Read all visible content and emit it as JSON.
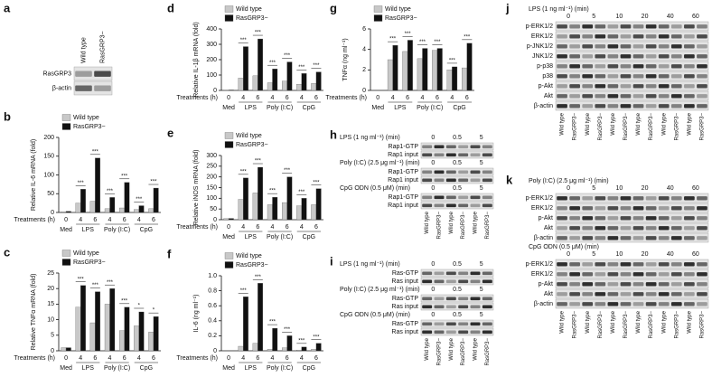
{
  "panel_letters": [
    "a",
    "b",
    "c",
    "d",
    "e",
    "f",
    "g",
    "h",
    "i",
    "j",
    "k"
  ],
  "chart_data": [
    {
      "type": "bar",
      "ylabel": "Relative IL-6 mRNA (fold)",
      "xlabel": "Treatments (h)",
      "categories": [
        "0",
        "4",
        "6",
        "4",
        "6",
        "4",
        "6"
      ],
      "groups": [
        "Med",
        "LPS",
        "Poly (I:C)",
        "CpG"
      ],
      "series": [
        {
          "name": "Wild type",
          "color": "#c8c8c8",
          "values": [
            2,
            25,
            30,
            10,
            12,
            8,
            10
          ]
        },
        {
          "name": "RasGRP3−",
          "color": "#111111",
          "values": [
            3,
            62,
            145,
            40,
            80,
            18,
            65
          ]
        }
      ],
      "ylim": [
        0,
        200
      ],
      "yticks": [
        0,
        50,
        100,
        150,
        200
      ],
      "significance": [
        "***",
        "***",
        "***",
        "***",
        "***",
        "***"
      ]
    },
    {
      "type": "bar",
      "ylabel": "Relative TNFα mRNA (fold)",
      "xlabel": "Treatments (h)",
      "categories": [
        "0",
        "4",
        "6",
        "4",
        "6",
        "4",
        "6"
      ],
      "groups": [
        "Med",
        "LPS",
        "Poly (I:C)",
        "CpG"
      ],
      "series": [
        {
          "name": "Wild type",
          "color": "#c8c8c8",
          "values": [
            1,
            14,
            9,
            15,
            6.5,
            8,
            6
          ]
        },
        {
          "name": "RasGRP3−",
          "color": "#111111",
          "values": [
            1,
            21,
            19,
            20,
            14,
            12.5,
            11
          ]
        }
      ],
      "ylim": [
        0,
        25
      ],
      "yticks": [
        0,
        5,
        10,
        15,
        20,
        25
      ],
      "significance": [
        "***",
        "***",
        "***",
        "***",
        "*",
        "*"
      ]
    },
    {
      "type": "bar",
      "ylabel": "Relative IL-1β mRNA (fold)",
      "xlabel": "Treatments (h)",
      "categories": [
        "0",
        "4",
        "6",
        "4",
        "6",
        "4",
        "6"
      ],
      "groups": [
        "Med",
        "LPS",
        "Poly (I:C)",
        "CpG"
      ],
      "series": [
        {
          "name": "Wild type",
          "color": "#c8c8c8",
          "values": [
            2,
            80,
            95,
            50,
            60,
            40,
            45
          ]
        },
        {
          "name": "RasGRP3−",
          "color": "#111111",
          "values": [
            3,
            285,
            335,
            140,
            185,
            110,
            120
          ]
        }
      ],
      "ylim": [
        0,
        400
      ],
      "yticks": [
        0,
        100,
        200,
        300,
        400
      ],
      "significance": [
        "***",
        "***",
        "***",
        "***",
        "***",
        "***"
      ]
    },
    {
      "type": "bar",
      "ylabel": "Relative iNOS mRNA (fold)",
      "xlabel": "Treatments (h)",
      "categories": [
        "0",
        "4",
        "6",
        "4",
        "6",
        "4",
        "6"
      ],
      "groups": [
        "Med",
        "LPS",
        "Poly (I:C)",
        "CpG"
      ],
      "series": [
        {
          "name": "Wild type",
          "color": "#c8c8c8",
          "values": [
            5,
            95,
            125,
            70,
            80,
            65,
            70
          ]
        },
        {
          "name": "RasGRP3−",
          "color": "#111111",
          "values": [
            6,
            195,
            245,
            105,
            200,
            100,
            145
          ]
        }
      ],
      "ylim": [
        0,
        300
      ],
      "yticks": [
        0,
        50,
        100,
        150,
        200,
        250,
        300
      ],
      "significance": [
        "***",
        "***",
        "***",
        "***",
        "***",
        "***"
      ]
    },
    {
      "type": "bar",
      "ylabel": "IL-6 (ng ml⁻¹)",
      "xlabel": "Treatments (h)",
      "categories": [
        "0",
        "4",
        "6",
        "4",
        "6",
        "4",
        "6"
      ],
      "groups": [
        "Med",
        "LPS",
        "Poly (I:C)",
        "CpG"
      ],
      "series": [
        {
          "name": "Wild type",
          "color": "#c8c8c8",
          "values": [
            0,
            0.06,
            0.1,
            0.02,
            0.04,
            0.01,
            0.02
          ]
        },
        {
          "name": "RasGRP3−",
          "color": "#111111",
          "values": [
            0,
            0.72,
            0.9,
            0.3,
            0.2,
            0.05,
            0.1
          ]
        }
      ],
      "ylim": [
        0,
        1
      ],
      "yticks": [
        0,
        0.2,
        0.4,
        0.6,
        0.8,
        {
          "value": 1,
          "label": "1.0"
        }
      ],
      "significance": [
        "***",
        "***",
        "***",
        "***",
        "***",
        "***"
      ]
    },
    {
      "type": "bar",
      "ylabel": "TNFα (ng ml⁻¹)",
      "xlabel": "Treatments (h)",
      "categories": [
        "0",
        "4",
        "6",
        "4",
        "6",
        "4",
        "6"
      ],
      "groups": [
        "Med",
        "LPS",
        "Poly (I:C)",
        "CpG"
      ],
      "series": [
        {
          "name": "Wild type",
          "color": "#c8c8c8",
          "values": [
            0,
            3,
            3.8,
            3.1,
            3.9,
            2,
            2.2
          ]
        },
        {
          "name": "RasGRP3−",
          "color": "#111111",
          "values": [
            0,
            4.4,
            4.9,
            4.1,
            4.1,
            2.3,
            4.6
          ]
        }
      ],
      "ylim": [
        0,
        6
      ],
      "yticks": [
        0,
        2,
        4,
        6
      ],
      "significance": [
        "***",
        "***",
        "***",
        "***",
        "***",
        "***"
      ]
    }
  ],
  "blots": [
    {
      "columns": [
        "Wild type",
        "RasGRP3−"
      ],
      "sections": [
        {
          "rows": [
            "RasGRP3",
            "β-actin"
          ]
        }
      ]
    },
    {
      "columns": [
        "Wild type",
        "RasGRP3−",
        "Wild type",
        "RasGRP3−",
        "Wild type",
        "RasGRP3−"
      ],
      "sections": [
        {
          "condition": "LPS (1 ng ml⁻¹) (min)",
          "times": [
            0,
            0.5,
            5
          ],
          "rows": [
            "Rap1-GTP",
            "Rap1 input"
          ]
        },
        {
          "condition": "Poly (I:C) (2.5 μg ml⁻¹) (min)",
          "times": [
            0,
            0.5,
            5
          ],
          "rows": [
            "Rap1-GTP",
            "Rap1 input"
          ]
        },
        {
          "condition": "CpG ODN (0.5 μM) (min)",
          "times": [
            0,
            0.5,
            5
          ],
          "rows": [
            "Rap1-GTP",
            "Rap1 input"
          ]
        }
      ]
    },
    {
      "columns": [
        "Wild type",
        "RasGRP3−",
        "Wild type",
        "RasGRP3−",
        "Wild type",
        "RasGRP3−"
      ],
      "sections": [
        {
          "condition": "LPS (1 ng ml⁻¹) (min)",
          "times": [
            0,
            0.5,
            5
          ],
          "rows": [
            "Ras-GTP",
            "Ras input"
          ]
        },
        {
          "condition": "Poly (I:C) (2.5 μg ml⁻¹) (min)",
          "times": [
            0,
            0.5,
            5
          ],
          "rows": [
            "Ras-GTP",
            "Ras input"
          ]
        },
        {
          "condition": "CpG ODN (0.5 μM) (min)",
          "times": [
            0,
            0.5,
            5
          ],
          "rows": [
            "Ras-GTP",
            "Ras input"
          ]
        }
      ]
    },
    {
      "columns": [
        "Wild type",
        "RasGRP3−",
        "Wild type",
        "RasGRP3−",
        "Wild type",
        "RasGRP3−",
        "Wild type",
        "RasGRP3−",
        "Wild type",
        "RasGRP3−",
        "Wild type",
        "RasGRP3−"
      ],
      "sections": [
        {
          "condition": "LPS (1 ng ml⁻¹) (min)",
          "times": [
            0,
            5,
            10,
            20,
            40,
            60
          ],
          "rows": [
            "p-ERK1/2",
            "ERK1/2",
            "p-JNK1/2",
            "JNK1/2",
            "p-p38",
            "p38",
            "p-Akt",
            "Akt",
            "β-actin"
          ]
        }
      ]
    },
    {
      "columns": [
        "Wild type",
        "RasGRP3−",
        "Wild type",
        "RasGRP3−",
        "Wild type",
        "RasGRP3−",
        "Wild type",
        "RasGRP3−",
        "Wild type",
        "RasGRP3−",
        "Wild type",
        "RasGRP3−"
      ],
      "sections": [
        {
          "condition": "Poly (I:C) (2.5 μg ml⁻¹) (min)",
          "times": [
            0,
            5,
            10,
            20,
            40,
            60
          ],
          "rows": [
            "p-ERK1/2",
            "ERK1/2",
            "p-Akt",
            "Akt",
            "β-actin"
          ]
        },
        {
          "condition": "CpG ODN (0.5 μM) (min)",
          "times": [
            0,
            5,
            10,
            20,
            40,
            60
          ],
          "rows": [
            "p-ERK1/2",
            "ERK1/2",
            "p-Akt",
            "Akt",
            "β-actin"
          ]
        }
      ]
    }
  ]
}
